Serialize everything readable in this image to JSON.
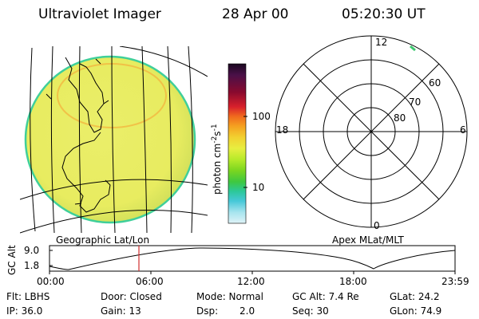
{
  "header": {
    "instrument": "Ultraviolet Imager",
    "date": "28 Apr 00",
    "time": "05:20:30 UT"
  },
  "colorbar": {
    "label_prefix": "photon cm",
    "label_exp1": "-2",
    "label_mid": "s",
    "label_exp2": "-1",
    "ticks": [
      "100",
      "10"
    ],
    "colors": [
      "#1a0820",
      "#4a1048",
      "#8a0a2e",
      "#d8202c",
      "#f06a1e",
      "#f5a020",
      "#f2d030",
      "#e8ee40",
      "#b6ea2a",
      "#7ad620",
      "#3ec840",
      "#2cc89a",
      "#46c8d8",
      "#a6e4ee",
      "#dff3f7"
    ]
  },
  "geo_panel": {
    "label": "Geographic Lat/Lon"
  },
  "polar_panel": {
    "label": "Apex MLat/MLT",
    "mlt_labels": {
      "top": "12",
      "left": "18",
      "right": "6",
      "bottom": "0"
    },
    "lat_labels": [
      "60",
      "70",
      "80"
    ]
  },
  "altitude_plot": {
    "ylabel": "GC Alt",
    "yticks": [
      "9.0",
      "1.8"
    ],
    "xticks": [
      "00:00",
      "06:00",
      "12:00",
      "18:00",
      "23:59"
    ],
    "current_time_marker": "05:20"
  },
  "info": {
    "row1": [
      "Flt: LBHS",
      "Door: Closed",
      "Mode: Normal",
      "GC Alt: 7.4 Re",
      "GLat: 24.2"
    ],
    "row2": [
      "IP: 36.0",
      "Gain: 13",
      "Dsp:",
      "2.0",
      "Seq: 30",
      "GLon: 74.9"
    ]
  }
}
